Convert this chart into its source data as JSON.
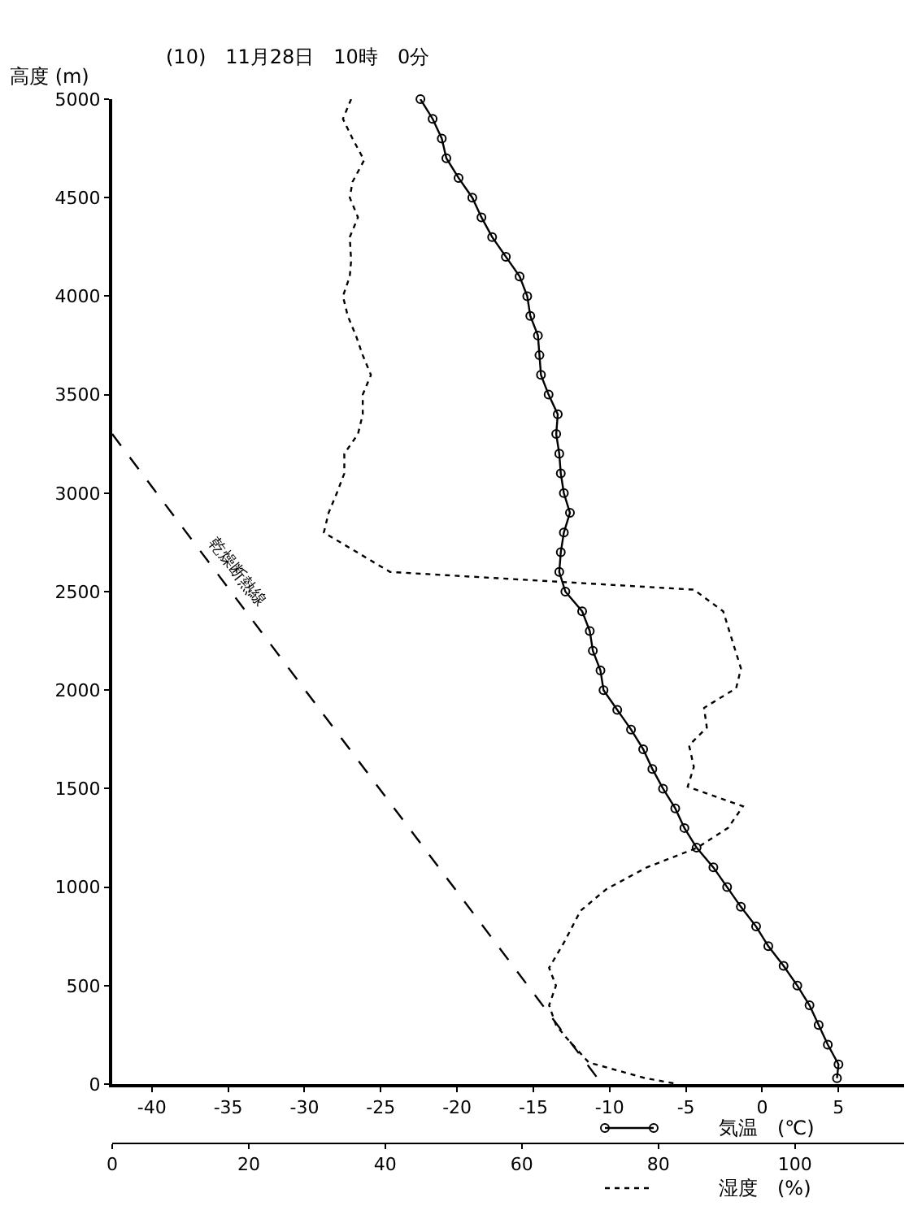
{
  "chart_data": {
    "type": "line",
    "title": "(10)　11月28日　10時　0分",
    "ylabel": "高度 (m)",
    "xlabel": "気温　(℃)",
    "x2label": "湿度　(%)",
    "xlim": [
      -42.6,
      9.3
    ],
    "xticks": [
      -40,
      -35,
      -30,
      -25,
      -20,
      -15,
      -10,
      -5,
      0,
      5
    ],
    "x2lim": [
      0,
      116
    ],
    "x2ticks": [
      0,
      20,
      40,
      60,
      80,
      100
    ],
    "ylim": [
      0,
      5000
    ],
    "yticks": [
      0,
      500,
      1000,
      1500,
      2000,
      2500,
      3000,
      3500,
      4000,
      4500,
      5000
    ],
    "annotations": [
      "乾燥断熱線"
    ],
    "series": [
      {
        "color": "#000000",
        "marker": "circle",
        "line_style": "solid",
        "x": [
          -22.4,
          -21.6,
          -21.0,
          -20.7,
          -19.9,
          -19.0,
          -18.4,
          -17.7,
          -16.8,
          -15.9,
          -15.4,
          -15.2,
          -14.7,
          -14.6,
          -14.5,
          -14.0,
          -13.4,
          -13.5,
          -13.3,
          -13.2,
          -13.0,
          -12.6,
          -13.0,
          -13.2,
          -13.3,
          -12.9,
          -11.8,
          -11.3,
          -11.1,
          -10.6,
          -10.4,
          -9.5,
          -8.6,
          -7.8,
          -7.2,
          -6.5,
          -5.7,
          -5.1,
          -4.3,
          -3.2,
          -2.3,
          -1.4,
          -0.4,
          0.4,
          1.4,
          2.3,
          3.1,
          3.7,
          4.3,
          5.0,
          4.9
        ],
        "values": [
          5000,
          4900,
          4800,
          4700,
          4600,
          4500,
          4400,
          4300,
          4200,
          4100,
          4000,
          3900,
          3800,
          3700,
          3600,
          3500,
          3400,
          3300,
          3200,
          3100,
          3000,
          2900,
          2800,
          2700,
          2600,
          2500,
          2400,
          2300,
          2200,
          2100,
          2000,
          1900,
          1800,
          1700,
          1600,
          1500,
          1400,
          1300,
          1200,
          1100,
          1000,
          900,
          800,
          700,
          600,
          500,
          400,
          300,
          200,
          100,
          30
        ]
      },
      {
        "color": "#000000",
        "marker": "none",
        "line_style": "dotted",
        "axis": "x2",
        "x": [
          35.0,
          33.8,
          35.2,
          36.9,
          35.2,
          34.8,
          36.0,
          34.8,
          35.0,
          34.8,
          33.8,
          34.5,
          35.7,
          36.7,
          37.9,
          36.7,
          36.7,
          36.0,
          34.0,
          34.0,
          32.9,
          31.7,
          31.0,
          40.7,
          85.2,
          89.5,
          91.2,
          92.1,
          91.4,
          86.7,
          87.1,
          84.5,
          85.2,
          84.3,
          92.4,
          90.2,
          85.7,
          78.3,
          72.4,
          68.6,
          66.2,
          64.0,
          65.0,
          64.0,
          65.0,
          66.4,
          69.8,
          78.1,
          82.9
        ],
        "values": [
          5000,
          4900,
          4800,
          4690,
          4580,
          4500,
          4400,
          4300,
          4180,
          4100,
          4000,
          3900,
          3800,
          3700,
          3600,
          3500,
          3400,
          3300,
          3200,
          3100,
          3000,
          2900,
          2800,
          2600,
          2510,
          2400,
          2210,
          2110,
          2010,
          1910,
          1810,
          1720,
          1610,
          1510,
          1410,
          1300,
          1200,
          1100,
          990,
          880,
          720,
          590,
          500,
          400,
          300,
          240,
          110,
          30,
          0
        ]
      },
      {
        "color": "#000000",
        "marker": "none",
        "line_style": "dashed",
        "x": [
          -42.6,
          -10.5
        ],
        "values": [
          3300,
          0
        ]
      }
    ]
  }
}
